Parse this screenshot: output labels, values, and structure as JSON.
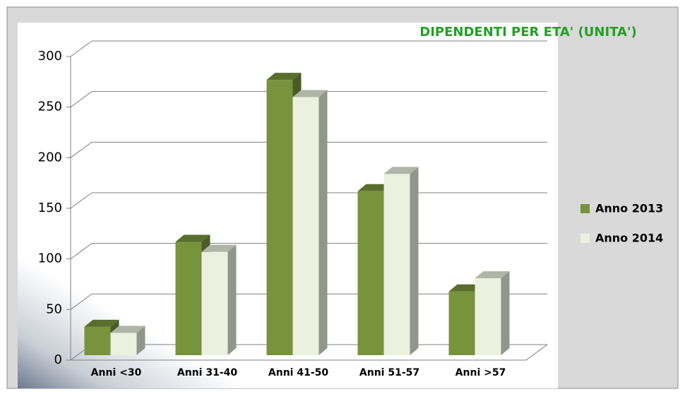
{
  "chart_data": {
    "type": "bar3d",
    "title": "DIPENDENTI PER ETA' (UNITA')",
    "categories": [
      "Anni <30",
      "Anni 31-40",
      "Anni 41-50",
      "Anni 51-57",
      "Anni >57"
    ],
    "series": [
      {
        "name": "Anno 2013",
        "color": "#77933c",
        "values": [
          28,
          112,
          272,
          162,
          63
        ]
      },
      {
        "name": "Anno 2014",
        "color": "#ebf1de",
        "values": [
          22,
          102,
          255,
          179,
          76
        ]
      }
    ],
    "ylim": [
      0,
      300
    ],
    "yticks": [
      0,
      50,
      100,
      150,
      200,
      250,
      300
    ],
    "grid": true,
    "legend": "right"
  }
}
